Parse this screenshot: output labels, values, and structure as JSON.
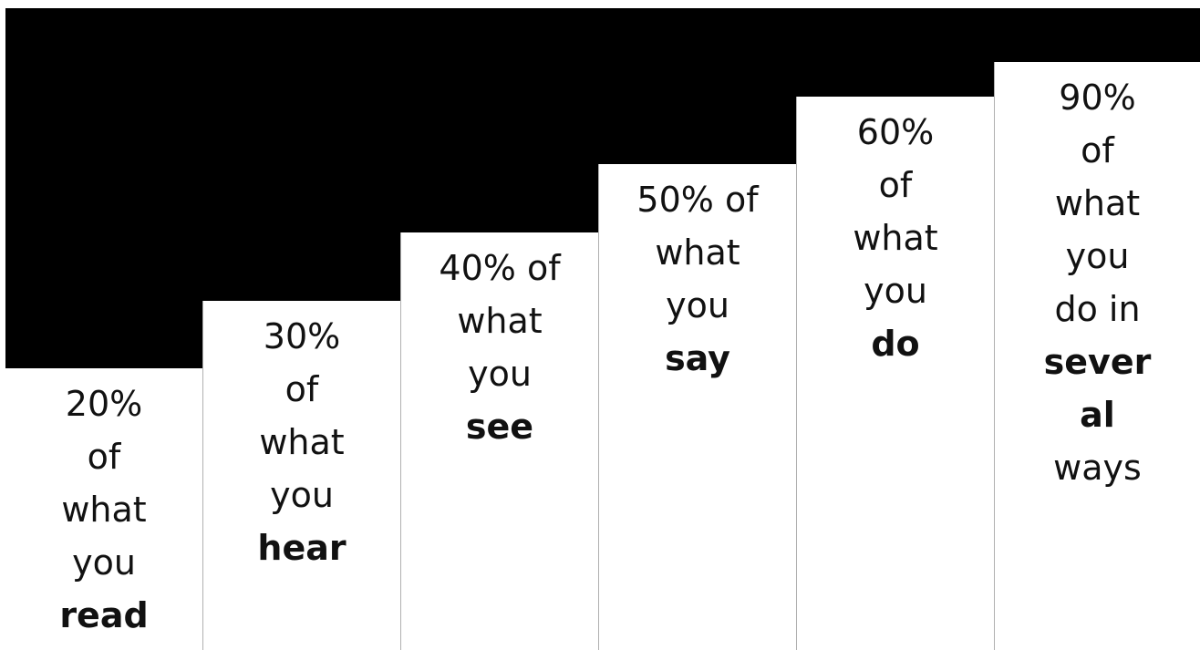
{
  "steps": [
    {
      "lines": [
        "20%",
        "of",
        "what",
        "you"
      ],
      "bold": "read"
    },
    {
      "lines": [
        "30%",
        "of",
        "what",
        "you"
      ],
      "bold": "hear"
    },
    {
      "lines": [
        "40% of",
        "what",
        "you"
      ],
      "bold": "see"
    },
    {
      "lines": [
        "50% of",
        "what",
        "you"
      ],
      "bold": "say"
    },
    {
      "lines": [
        "60%",
        "of",
        "what",
        "you"
      ],
      "bold": "do"
    },
    {
      "lines": [
        "90%",
        "of",
        "what",
        "you",
        "do in"
      ],
      "bold_lines": [
        "sever",
        "al"
      ],
      "after": "ways"
    }
  ],
  "colors": {
    "background": "#000000",
    "step_fill": "#ffffff",
    "text": "#111111"
  }
}
